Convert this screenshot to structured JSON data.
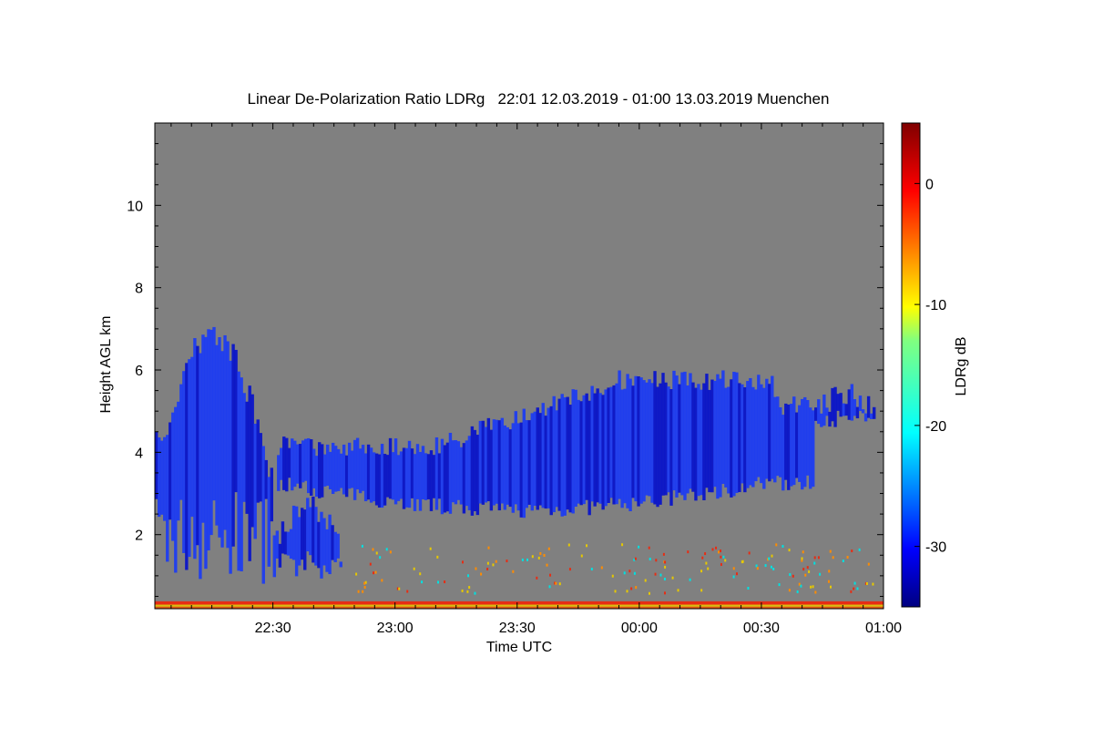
{
  "chart_data": {
    "type": "heatmap",
    "title": "Linear De-Polarization Ratio LDRg   22:01 12.03.2019 - 01:00 13.03.2019 Muenchen",
    "xlabel": "Time UTC",
    "ylabel": "Height AGL km",
    "xlim": [
      "22:01",
      "01:00"
    ],
    "ylim": [
      0.2,
      12
    ],
    "x_ticks": [
      "22:30",
      "23:00",
      "23:30",
      "00:00",
      "00:30",
      "01:00"
    ],
    "y_ticks": [
      2,
      4,
      6,
      8,
      10
    ],
    "colorbar": {
      "label": "LDRg dB",
      "range": [
        -35,
        5
      ],
      "ticks": [
        0,
        -10,
        -20,
        -30
      ]
    },
    "colors": {
      "background": "#808080",
      "cloud": "#1e3cf0",
      "cloud_dark": "#0a14c8",
      "ground_red": "#e62d14",
      "ground_yellow": "#e6c800"
    },
    "features": [
      {
        "x_range": [
          "22:01",
          "22:30"
        ],
        "y_range": [
          0.8,
          7.2
        ]
      },
      {
        "x_range": [
          "22:30",
          "22:47"
        ],
        "y_range": [
          0.8,
          3.1
        ]
      },
      {
        "x_range": [
          "22:31",
          "00:43"
        ],
        "y_range": [
          2.2,
          6.3
        ]
      },
      {
        "x_range": [
          "00:43",
          "00:58"
        ],
        "y_range": [
          4.6,
          5.8
        ]
      }
    ]
  }
}
